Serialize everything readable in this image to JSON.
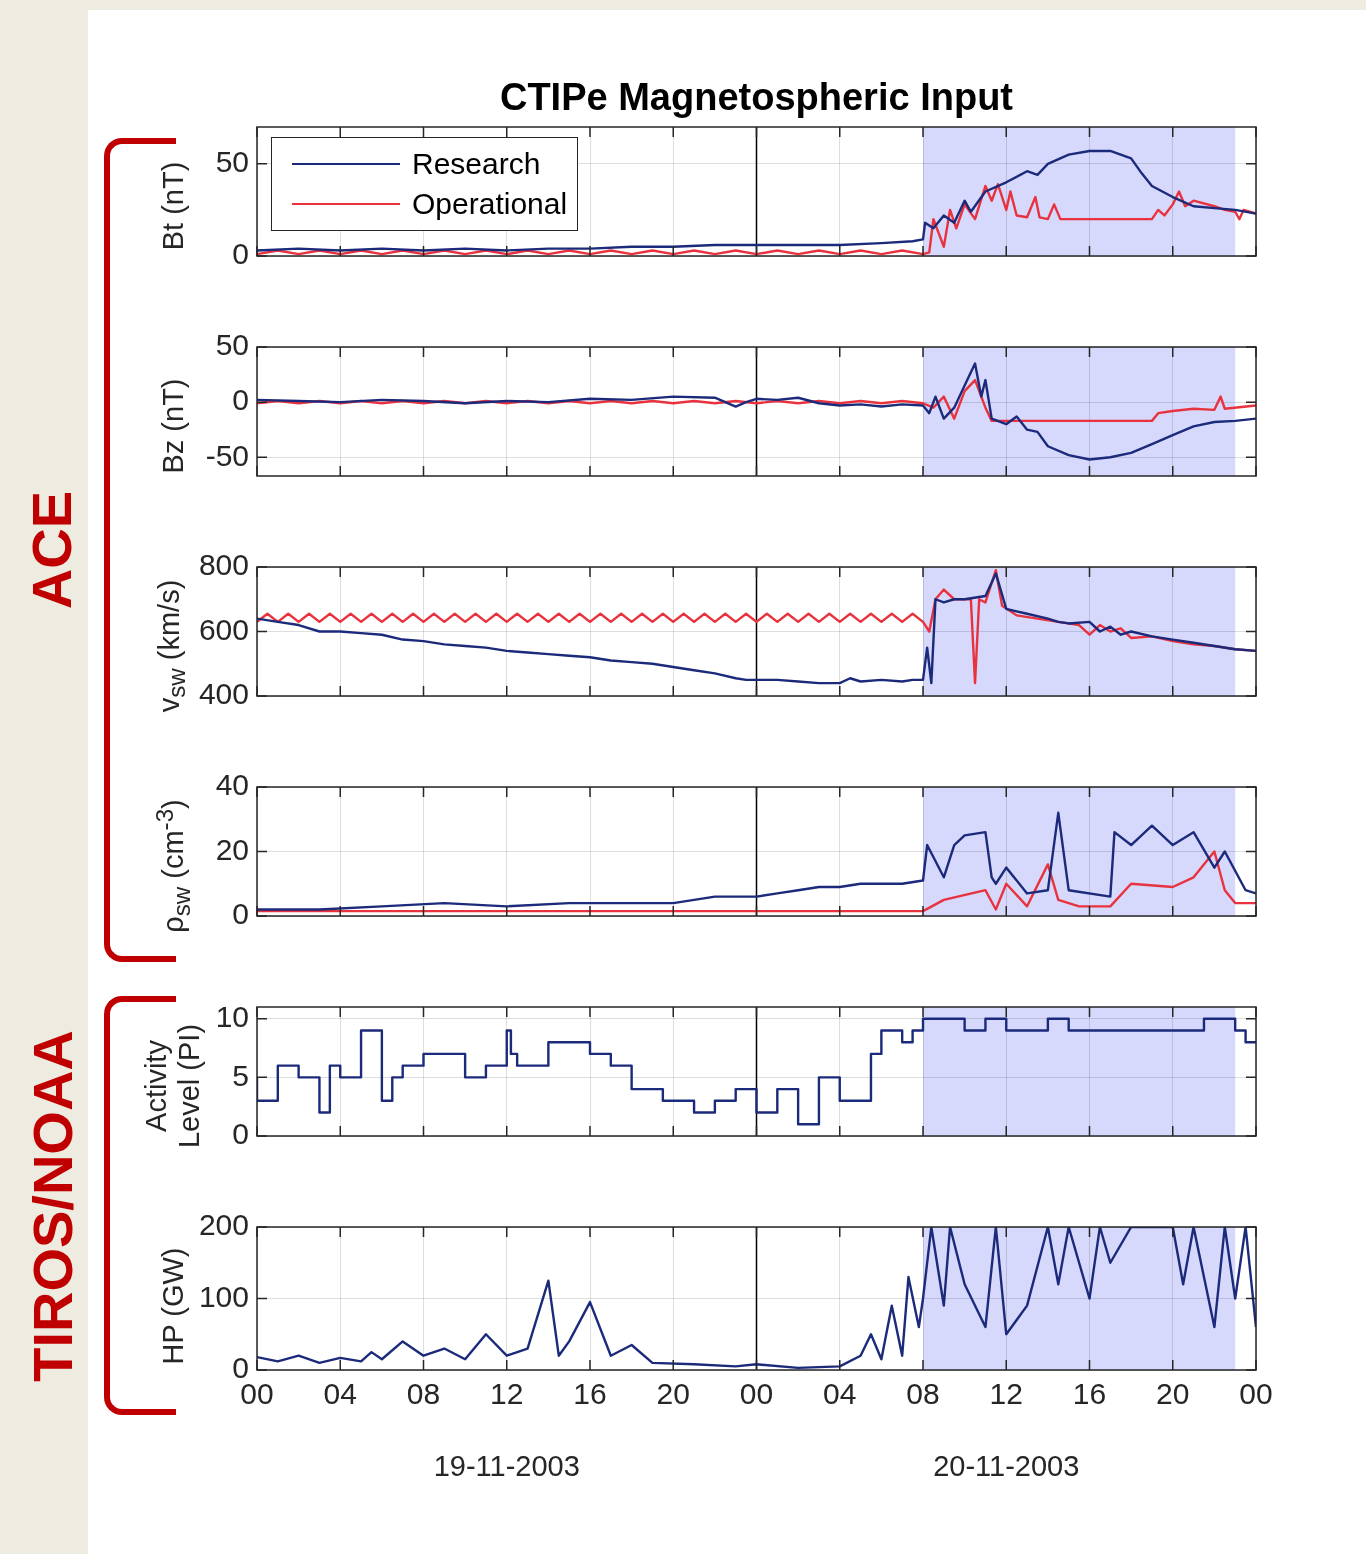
{
  "chart_data": [
    {
      "type": "line",
      "title": "CTIPe Magnetospheric Input",
      "ylabel": "Bt (nT)",
      "annotations": [
        "ACE"
      ],
      "xlim": [
        0,
        48
      ],
      "xticks": [
        {
          "value": 0,
          "label": null
        },
        {
          "value": 4,
          "label": null
        },
        {
          "value": 8,
          "label": null
        },
        {
          "value": 12,
          "label": null
        },
        {
          "value": 16,
          "label": null
        },
        {
          "value": 20,
          "label": null
        },
        {
          "value": 24,
          "label": null
        },
        {
          "value": 28,
          "label": null
        },
        {
          "value": 32,
          "label": null
        },
        {
          "value": 36,
          "label": null
        },
        {
          "value": 40,
          "label": null
        },
        {
          "value": 44,
          "label": null
        },
        {
          "value": 48,
          "label": null
        }
      ],
      "ylim": [
        0,
        70
      ],
      "yticks": [
        0,
        50
      ],
      "grid": true,
      "tick_labels": "y",
      "legend": "top left",
      "bands": [
        {
          "axis": "x",
          "from": 32,
          "to": 47,
          "color": "#d6d8fc"
        }
      ],
      "ref_lines": [
        {
          "axis": "x",
          "value": 24,
          "color": "#000000"
        }
      ],
      "series": [
        {
          "name": "Research",
          "color": "#1b2a7a",
          "x": [
            0,
            2,
            4,
            6,
            8,
            10,
            12,
            14,
            16,
            18,
            20,
            22,
            24,
            26,
            28,
            30,
            31.5,
            32,
            32.1,
            32.5,
            33,
            33.5,
            34,
            34.3,
            35,
            36,
            37,
            37.5,
            38,
            39,
            40,
            41,
            42,
            42.5,
            43,
            44,
            45,
            46,
            47,
            48
          ],
          "values": [
            3,
            4,
            3,
            4,
            3,
            4,
            3,
            4,
            4,
            5,
            5,
            6,
            6,
            6,
            6,
            7,
            8,
            9,
            18,
            15,
            22,
            18,
            30,
            24,
            35,
            40,
            46,
            44,
            50,
            55,
            57,
            57,
            53,
            45,
            38,
            32,
            27,
            26,
            25,
            23
          ]
        },
        {
          "name": "Operational",
          "color": "#e8333f",
          "x": [
            0,
            1,
            2,
            3,
            4,
            5,
            6,
            7,
            8,
            9,
            10,
            11,
            12,
            13,
            14,
            15,
            16,
            17,
            18,
            19,
            20,
            21,
            22,
            23,
            24,
            25,
            26,
            27,
            28,
            29,
            30,
            31,
            32,
            32.3,
            32.5,
            33,
            33.3,
            33.6,
            34,
            34.5,
            35,
            35.3,
            35.6,
            36,
            36.2,
            36.5,
            37,
            37.4,
            37.6,
            38,
            38.3,
            38.6,
            43,
            43.3,
            43.6,
            44,
            44.3,
            44.6,
            45,
            46,
            46.5,
            47,
            47.2,
            47.4,
            48
          ],
          "values": [
            1,
            3,
            1,
            3,
            1,
            3,
            1,
            3,
            1,
            3,
            1,
            3,
            1,
            3,
            1,
            3,
            1,
            3,
            1,
            3,
            1,
            3,
            1,
            3,
            1,
            3,
            1,
            3,
            1,
            3,
            1,
            3,
            1,
            2,
            20,
            5,
            25,
            15,
            28,
            20,
            38,
            30,
            39,
            25,
            35,
            22,
            21,
            32,
            21,
            20,
            28,
            20,
            20,
            25,
            22,
            28,
            35,
            27,
            30,
            27,
            25,
            24,
            20,
            25,
            23
          ]
        }
      ]
    },
    {
      "type": "line",
      "ylabel": "Bz (nT)",
      "xlim": [
        0,
        48
      ],
      "xticks": [
        {
          "value": 0,
          "label": null
        },
        {
          "value": 4,
          "label": null
        },
        {
          "value": 8,
          "label": null
        },
        {
          "value": 12,
          "label": null
        },
        {
          "value": 16,
          "label": null
        },
        {
          "value": 20,
          "label": null
        },
        {
          "value": 24,
          "label": null
        },
        {
          "value": 28,
          "label": null
        },
        {
          "value": 32,
          "label": null
        },
        {
          "value": 36,
          "label": null
        },
        {
          "value": 40,
          "label": null
        },
        {
          "value": 44,
          "label": null
        },
        {
          "value": 48,
          "label": null
        }
      ],
      "ylim": [
        -67,
        50
      ],
      "yticks": [
        -50,
        0,
        50
      ],
      "grid": true,
      "tick_labels": "y",
      "bands": [
        {
          "axis": "x",
          "from": 32,
          "to": 47,
          "color": "#d6d8fc"
        }
      ],
      "ref_lines": [
        {
          "axis": "x",
          "value": 24,
          "color": "#000000"
        }
      ],
      "series": [
        {
          "color": "#1b2a7a",
          "x": [
            0,
            2,
            4,
            6,
            8,
            10,
            12,
            14,
            16,
            18,
            20,
            22,
            23,
            23.5,
            24,
            25,
            26,
            27,
            28,
            29,
            30,
            31,
            32,
            32.3,
            32.6,
            33,
            33.5,
            34,
            34.5,
            34.8,
            35,
            35.3,
            36,
            36.5,
            37,
            37.5,
            38,
            39,
            40,
            41,
            42,
            43,
            44,
            45,
            46,
            47,
            48
          ],
          "values": [
            2,
            1,
            0,
            2,
            1,
            -1,
            1,
            0,
            3,
            2,
            5,
            4,
            -4,
            0,
            3,
            2,
            4,
            -1,
            -3,
            -2,
            -4,
            -2,
            -3,
            -10,
            5,
            -15,
            -5,
            15,
            35,
            5,
            20,
            -15,
            -20,
            -13,
            -25,
            -27,
            -40,
            -48,
            -52,
            -50,
            -46,
            -38,
            -30,
            -22,
            -18,
            -17,
            -15
          ]
        },
        {
          "color": "#e8333f",
          "x": [
            0,
            1,
            2,
            3,
            4,
            5,
            6,
            7,
            8,
            9,
            10,
            11,
            12,
            13,
            14,
            15,
            16,
            17,
            18,
            19,
            20,
            21,
            22,
            23,
            24,
            25,
            26,
            27,
            28,
            29,
            30,
            31,
            32,
            32.5,
            33,
            33.5,
            34,
            34.5,
            35,
            35.3,
            43,
            43.3,
            44,
            45,
            46,
            46.3,
            46.5,
            48
          ],
          "values": [
            -1,
            1,
            -1,
            1,
            -1,
            1,
            -1,
            1,
            -1,
            1,
            -1,
            1,
            -1,
            1,
            -1,
            1,
            -1,
            1,
            -1,
            1,
            -1,
            1,
            -1,
            1,
            -1,
            1,
            -1,
            1,
            -1,
            1,
            -1,
            1,
            -1,
            -5,
            5,
            -15,
            10,
            20,
            -5,
            -17,
            -17,
            -10,
            -8,
            -6,
            -7,
            5,
            -6,
            -3
          ]
        }
      ]
    },
    {
      "type": "line",
      "ylabel": "v$_{sw}$ (km/s)",
      "xlim": [
        0,
        48
      ],
      "xticks": [
        {
          "value": 0,
          "label": null
        },
        {
          "value": 4,
          "label": null
        },
        {
          "value": 8,
          "label": null
        },
        {
          "value": 12,
          "label": null
        },
        {
          "value": 16,
          "label": null
        },
        {
          "value": 20,
          "label": null
        },
        {
          "value": 24,
          "label": null
        },
        {
          "value": 28,
          "label": null
        },
        {
          "value": 32,
          "label": null
        },
        {
          "value": 36,
          "label": null
        },
        {
          "value": 40,
          "label": null
        },
        {
          "value": 44,
          "label": null
        },
        {
          "value": 48,
          "label": null
        }
      ],
      "ylim": [
        400,
        800
      ],
      "yticks": [
        400,
        600,
        800
      ],
      "grid": true,
      "tick_labels": "y",
      "bands": [
        {
          "axis": "x",
          "from": 32,
          "to": 47,
          "color": "#d6d8fc"
        }
      ],
      "ref_lines": [
        {
          "axis": "x",
          "value": 24,
          "color": "#000000"
        }
      ],
      "series": [
        {
          "color": "#1b2a7a",
          "x": [
            0,
            1,
            2,
            3,
            4,
            5,
            6,
            7,
            8,
            9,
            10,
            11,
            12,
            13,
            14,
            15,
            16,
            17,
            18,
            19,
            20,
            21,
            22,
            23,
            23.5,
            24,
            25,
            26,
            27,
            28,
            28.5,
            29,
            30,
            31,
            31.5,
            32,
            32.2,
            32.4,
            32.6,
            33,
            33.5,
            34,
            35,
            35.5,
            36,
            37,
            38,
            38.5,
            39,
            40,
            40.5,
            41,
            41.5,
            42,
            43,
            44,
            45,
            46,
            47,
            48
          ],
          "values": [
            640,
            630,
            620,
            600,
            600,
            595,
            590,
            575,
            570,
            560,
            555,
            550,
            540,
            535,
            530,
            525,
            520,
            510,
            505,
            500,
            490,
            480,
            470,
            455,
            450,
            450,
            450,
            445,
            440,
            440,
            455,
            445,
            450,
            445,
            450,
            450,
            550,
            440,
            700,
            690,
            700,
            700,
            710,
            780,
            670,
            655,
            640,
            630,
            625,
            630,
            600,
            615,
            590,
            600,
            585,
            575,
            565,
            555,
            545,
            540
          ]
        },
        {
          "color": "#e8333f",
          "x": [
            0,
            0.5,
            1,
            1.5,
            2,
            2.5,
            3,
            3.5,
            4,
            4.5,
            5,
            5.5,
            6,
            6.5,
            7,
            7.5,
            8,
            8.5,
            9,
            9.5,
            10,
            10.5,
            11,
            11.5,
            12,
            12.5,
            13,
            13.5,
            14,
            14.5,
            15,
            15.5,
            16,
            16.5,
            17,
            17.5,
            18,
            18.5,
            19,
            19.5,
            20,
            20.5,
            21,
            21.5,
            22,
            22.5,
            23,
            23.5,
            24,
            24.5,
            25,
            25.5,
            26,
            26.5,
            27,
            27.5,
            28,
            28.5,
            29,
            29.5,
            30,
            30.5,
            31,
            31.5,
            32,
            32.3,
            32.6,
            33,
            33.5,
            34.3,
            34.5,
            34.7,
            35,
            35.5,
            35.8,
            36.5,
            37.5,
            38.5,
            39.5,
            40,
            40.5,
            41,
            41.5,
            42,
            43,
            44,
            45,
            46,
            47,
            48
          ],
          "values": [
            630,
            655,
            630,
            655,
            630,
            655,
            630,
            655,
            630,
            655,
            630,
            655,
            630,
            655,
            630,
            655,
            630,
            655,
            630,
            655,
            630,
            655,
            630,
            655,
            630,
            655,
            630,
            655,
            630,
            655,
            630,
            655,
            630,
            655,
            630,
            655,
            630,
            655,
            630,
            655,
            630,
            655,
            630,
            655,
            630,
            655,
            630,
            655,
            630,
            655,
            630,
            655,
            630,
            655,
            630,
            655,
            630,
            655,
            630,
            655,
            630,
            655,
            630,
            655,
            630,
            600,
            700,
            730,
            700,
            700,
            440,
            700,
            690,
            790,
            680,
            650,
            640,
            630,
            620,
            590,
            620,
            600,
            610,
            580,
            585,
            570,
            560,
            555,
            545,
            540
          ]
        }
      ]
    },
    {
      "type": "line",
      "ylabel": "ρ$_{sw}$ (cm$^{-3}$)",
      "xlim": [
        0,
        48
      ],
      "xticks": [
        {
          "value": 0,
          "label": null
        },
        {
          "value": 4,
          "label": null
        },
        {
          "value": 8,
          "label": null
        },
        {
          "value": 12,
          "label": null
        },
        {
          "value": 16,
          "label": null
        },
        {
          "value": 20,
          "label": null
        },
        {
          "value": 24,
          "label": null
        },
        {
          "value": 28,
          "label": null
        },
        {
          "value": 32,
          "label": null
        },
        {
          "value": 36,
          "label": null
        },
        {
          "value": 40,
          "label": null
        },
        {
          "value": 44,
          "label": null
        },
        {
          "value": 48,
          "label": null
        }
      ],
      "ylim": [
        0,
        40
      ],
      "yticks": [
        0,
        20,
        40
      ],
      "grid": true,
      "tick_labels": "y",
      "bands": [
        {
          "axis": "x",
          "from": 32,
          "to": 47,
          "color": "#d6d8fc"
        }
      ],
      "ref_lines": [
        {
          "axis": "x",
          "value": 24,
          "color": "#000000"
        }
      ],
      "series": [
        {
          "color": "#1b2a7a",
          "x": [
            0,
            3,
            6,
            9,
            12,
            15,
            18,
            20,
            22,
            24,
            25,
            26,
            27,
            28,
            29,
            30,
            31,
            32,
            32.2,
            33,
            33.5,
            34,
            35,
            35.3,
            35.5,
            36,
            37,
            38,
            38.5,
            39,
            41,
            41.2,
            42,
            43,
            44,
            45,
            46,
            46.5,
            47.5,
            48
          ],
          "values": [
            2,
            2,
            3,
            4,
            3,
            4,
            4,
            4,
            6,
            6,
            7,
            8,
            9,
            9,
            10,
            10,
            10,
            11,
            22,
            12,
            22,
            25,
            26,
            12,
            10,
            15,
            7,
            8,
            32,
            8,
            6,
            26,
            22,
            28,
            22,
            26,
            15,
            20,
            8,
            7
          ]
        },
        {
          "color": "#e8333f",
          "x": [
            0,
            8,
            16,
            24,
            32,
            33,
            35,
            35.5,
            36,
            37,
            38,
            38.5,
            39.5,
            41,
            42,
            44,
            45,
            46,
            46.5,
            47,
            48
          ],
          "values": [
            1.5,
            1.5,
            1.5,
            1.5,
            1.5,
            5,
            8,
            2,
            10,
            3,
            16,
            5,
            3,
            3,
            10,
            9,
            12,
            20,
            8,
            4,
            4
          ]
        }
      ]
    },
    {
      "type": "step",
      "ylabel": "Activity Level (PI)",
      "annotations": [
        "TIROS/NOAA"
      ],
      "xlim": [
        0,
        48
      ],
      "xticks": [
        {
          "value": 0,
          "label": null
        },
        {
          "value": 4,
          "label": null
        },
        {
          "value": 8,
          "label": null
        },
        {
          "value": 12,
          "label": null
        },
        {
          "value": 16,
          "label": null
        },
        {
          "value": 20,
          "label": null
        },
        {
          "value": 24,
          "label": null
        },
        {
          "value": 28,
          "label": null
        },
        {
          "value": 32,
          "label": null
        },
        {
          "value": 36,
          "label": null
        },
        {
          "value": 40,
          "label": null
        },
        {
          "value": 44,
          "label": null
        },
        {
          "value": 48,
          "label": null
        }
      ],
      "ylim": [
        0,
        11
      ],
      "yticks": [
        0,
        5,
        10
      ],
      "grid": true,
      "tick_labels": "y",
      "bands": [
        {
          "axis": "x",
          "from": 32,
          "to": 47,
          "color": "#d6d8fc"
        }
      ],
      "ref_lines": [
        {
          "axis": "x",
          "value": 24,
          "color": "#000000"
        }
      ],
      "series": [
        {
          "color": "#1b2a7a",
          "x": [
            0,
            1,
            2,
            3,
            3.5,
            4,
            5,
            6,
            6.5,
            7,
            8,
            9,
            10,
            11,
            12,
            12.2,
            12.5,
            14,
            16,
            17,
            18,
            19.5,
            21,
            22,
            23,
            24,
            25,
            26,
            27,
            28,
            29.5,
            30,
            31,
            31.5,
            32,
            34,
            35,
            36,
            38,
            39,
            45.5,
            47,
            47.5,
            48
          ],
          "values": [
            5,
            3,
            6,
            5,
            2,
            6,
            5,
            9,
            3,
            5,
            6,
            7,
            7,
            5,
            6,
            9,
            7,
            6,
            8,
            7,
            6,
            4,
            3,
            2,
            3,
            4,
            2,
            4,
            1,
            5,
            3,
            7,
            9,
            8,
            9,
            10,
            9,
            10,
            9,
            10,
            9,
            10,
            9,
            8
          ]
        }
      ]
    },
    {
      "type": "line",
      "ylabel": "HP (GW)",
      "annotations": [
        "19-11-2003",
        "20-11-2003"
      ],
      "xlim": [
        0,
        48
      ],
      "xticks": [
        {
          "value": 0,
          "label": "00"
        },
        {
          "value": 4,
          "label": "04"
        },
        {
          "value": 8,
          "label": "08"
        },
        {
          "value": 12,
          "label": "12"
        },
        {
          "value": 16,
          "label": "16"
        },
        {
          "value": 20,
          "label": "20"
        },
        {
          "value": 24,
          "label": "00"
        },
        {
          "value": 28,
          "label": "04"
        },
        {
          "value": 32,
          "label": "08"
        },
        {
          "value": 36,
          "label": "12"
        },
        {
          "value": 40,
          "label": "16"
        },
        {
          "value": 44,
          "label": "20"
        },
        {
          "value": 48,
          "label": "00"
        }
      ],
      "ylim": [
        0,
        200
      ],
      "yticks": [
        0,
        100,
        200
      ],
      "grid": true,
      "bands": [
        {
          "axis": "x",
          "from": 32,
          "to": 47,
          "color": "#d6d8fc"
        }
      ],
      "ref_lines": [
        {
          "axis": "x",
          "value": 24,
          "color": "#000000"
        }
      ],
      "series": [
        {
          "color": "#1b2a7a",
          "x": [
            0,
            1,
            2,
            3,
            4,
            5,
            5.5,
            6,
            7,
            8,
            9,
            10,
            11,
            12,
            13,
            14,
            14.5,
            15,
            16,
            17,
            18,
            19,
            21,
            23,
            24,
            26,
            28,
            29,
            29.5,
            30,
            30.5,
            31,
            31.3,
            31.8,
            32,
            32.4,
            33,
            33.3,
            34,
            35,
            35.5,
            36,
            37,
            38,
            38.5,
            39,
            40,
            40.5,
            41,
            42,
            44,
            44.5,
            45,
            46,
            46.5,
            47,
            47.5,
            48
          ],
          "values": [
            18,
            12,
            20,
            10,
            17,
            12,
            25,
            15,
            40,
            20,
            30,
            15,
            50,
            20,
            30,
            125,
            20,
            40,
            95,
            20,
            35,
            10,
            8,
            5,
            8,
            3,
            5,
            20,
            50,
            15,
            90,
            20,
            130,
            60,
            100,
            200,
            90,
            200,
            120,
            60,
            200,
            50,
            90,
            200,
            120,
            200,
            100,
            200,
            150,
            200,
            200,
            120,
            200,
            60,
            200,
            100,
            200,
            60
          ]
        }
      ]
    }
  ]
}
